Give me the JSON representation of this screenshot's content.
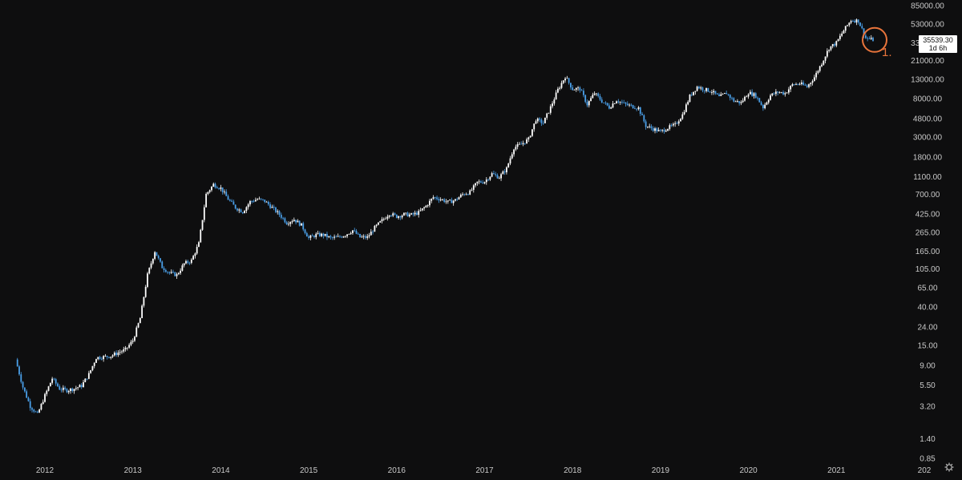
{
  "chart_data": {
    "type": "candlestick",
    "title": "",
    "xlabel": "",
    "ylabel": "",
    "y_scale": "log",
    "ylim": [
      0.85,
      85000
    ],
    "x_range": [
      "2011-09",
      "2022-01"
    ],
    "y_ticks": [
      "85000.00",
      "53000.00",
      "33000.00",
      "21000.00",
      "13000.00",
      "8000.00",
      "4800.00",
      "3000.00",
      "1800.00",
      "1100.00",
      "700.00",
      "425.00",
      "265.00",
      "165.00",
      "105.00",
      "65.00",
      "40.00",
      "24.00",
      "15.00",
      "9.00",
      "5.50",
      "3.20",
      "1.40",
      "0.85"
    ],
    "x_ticks": [
      "2012",
      "2013",
      "2014",
      "2015",
      "2016",
      "2017",
      "2018",
      "2019",
      "2020",
      "2021",
      "202"
    ],
    "up_color": "#ffffff",
    "down_color": "#4a9fe8",
    "series": [
      {
        "values": [
          [
            "2011-09",
            10.5
          ],
          [
            "2011-10",
            5.2
          ],
          [
            "2011-11",
            3.2
          ],
          [
            "2011-12",
            2.6
          ],
          [
            "2012-01",
            4.2
          ],
          [
            "2012-02",
            6.5
          ],
          [
            "2012-03",
            5.0
          ],
          [
            "2012-04",
            4.8
          ],
          [
            "2012-05",
            5.0
          ],
          [
            "2012-06",
            5.4
          ],
          [
            "2012-07",
            7.2
          ],
          [
            "2012-08",
            11.0
          ],
          [
            "2012-09",
            11.2
          ],
          [
            "2012-10",
            11.5
          ],
          [
            "2012-11",
            12.5
          ],
          [
            "2012-12",
            13.5
          ],
          [
            "2013-01",
            17.0
          ],
          [
            "2013-02",
            30.0
          ],
          [
            "2013-03",
            90.0
          ],
          [
            "2013-04",
            165.0
          ],
          [
            "2013-05",
            110.0
          ],
          [
            "2013-06",
            95.0
          ],
          [
            "2013-07",
            90.0
          ],
          [
            "2013-08",
            120.0
          ],
          [
            "2013-09",
            130.0
          ],
          [
            "2013-10",
            200.0
          ],
          [
            "2013-11",
            700.0
          ],
          [
            "2013-12",
            900.0
          ],
          [
            "2014-01",
            820.0
          ],
          [
            "2014-02",
            620.0
          ],
          [
            "2014-03",
            500.0
          ],
          [
            "2014-04",
            450.0
          ],
          [
            "2014-05",
            580.0
          ],
          [
            "2014-06",
            620.0
          ],
          [
            "2014-07",
            590.0
          ],
          [
            "2014-08",
            500.0
          ],
          [
            "2014-09",
            420.0
          ],
          [
            "2014-10",
            340.0
          ],
          [
            "2014-11",
            370.0
          ],
          [
            "2014-12",
            320.0
          ],
          [
            "2015-01",
            230.0
          ],
          [
            "2015-02",
            250.0
          ],
          [
            "2015-03",
            250.0
          ],
          [
            "2015-04",
            230.0
          ],
          [
            "2015-05",
            235.0
          ],
          [
            "2015-06",
            250.0
          ],
          [
            "2015-07",
            280.0
          ],
          [
            "2015-08",
            235.0
          ],
          [
            "2015-09",
            235.0
          ],
          [
            "2015-10",
            300.0
          ],
          [
            "2015-11",
            360.0
          ],
          [
            "2015-12",
            430.0
          ],
          [
            "2016-01",
            400.0
          ],
          [
            "2016-02",
            420.0
          ],
          [
            "2016-03",
            415.0
          ],
          [
            "2016-04",
            440.0
          ],
          [
            "2016-05",
            520.0
          ],
          [
            "2016-06",
            650.0
          ],
          [
            "2016-07",
            620.0
          ],
          [
            "2016-08",
            575.0
          ],
          [
            "2016-09",
            605.0
          ],
          [
            "2016-10",
            700.0
          ],
          [
            "2016-11",
            740.0
          ],
          [
            "2016-12",
            950.0
          ],
          [
            "2017-01",
            970.0
          ],
          [
            "2017-02",
            1180.0
          ],
          [
            "2017-03",
            1080.0
          ],
          [
            "2017-04",
            1350.0
          ],
          [
            "2017-05",
            2300.0
          ],
          [
            "2017-06",
            2500.0
          ],
          [
            "2017-07",
            2850.0
          ],
          [
            "2017-08",
            4700.0
          ],
          [
            "2017-09",
            4300.0
          ],
          [
            "2017-10",
            6400.0
          ],
          [
            "2017-11",
            10000.0
          ],
          [
            "2017-12",
            14000.0
          ],
          [
            "2018-01",
            10200.0
          ],
          [
            "2018-02",
            10300.0
          ],
          [
            "2018-03",
            6900.0
          ],
          [
            "2018-04",
            9200.0
          ],
          [
            "2018-05",
            7500.0
          ],
          [
            "2018-06",
            6400.0
          ],
          [
            "2018-07",
            7700.0
          ],
          [
            "2018-08",
            7000.0
          ],
          [
            "2018-09",
            6600.0
          ],
          [
            "2018-10",
            6300.0
          ],
          [
            "2018-11",
            4000.0
          ],
          [
            "2018-12",
            3700.0
          ],
          [
            "2019-01",
            3450.0
          ],
          [
            "2019-02",
            3800.0
          ],
          [
            "2019-03",
            4100.0
          ],
          [
            "2019-04",
            5300.0
          ],
          [
            "2019-05",
            8500.0
          ],
          [
            "2019-06",
            10800.0
          ],
          [
            "2019-07",
            10100.0
          ],
          [
            "2019-08",
            9600.0
          ],
          [
            "2019-09",
            8300.0
          ],
          [
            "2019-10",
            9200.0
          ],
          [
            "2019-11",
            7550.0
          ],
          [
            "2019-12",
            7200.0
          ],
          [
            "2020-01",
            9350.0
          ],
          [
            "2020-02",
            8600.0
          ],
          [
            "2020-03",
            6400.0
          ],
          [
            "2020-04",
            8650.0
          ],
          [
            "2020-05",
            9450.0
          ],
          [
            "2020-06",
            9150.0
          ],
          [
            "2020-07",
            11350.0
          ],
          [
            "2020-08",
            11700.0
          ],
          [
            "2020-09",
            10800.0
          ],
          [
            "2020-10",
            13800.0
          ],
          [
            "2020-11",
            19700.0
          ],
          [
            "2020-12",
            29000.0
          ],
          [
            "2021-01",
            33100.0
          ],
          [
            "2021-02",
            45200.0
          ],
          [
            "2021-03",
            58800.0
          ],
          [
            "2021-04",
            57800.0
          ],
          [
            "2021-05",
            37300.0
          ],
          [
            "2021-06",
            35539.3
          ]
        ]
      }
    ],
    "last_price_label": "35539.30",
    "last_price_timer": "1d 6h",
    "annotations": [
      {
        "text": "1.",
        "color": "#e8743b",
        "marker": "circle"
      }
    ]
  }
}
